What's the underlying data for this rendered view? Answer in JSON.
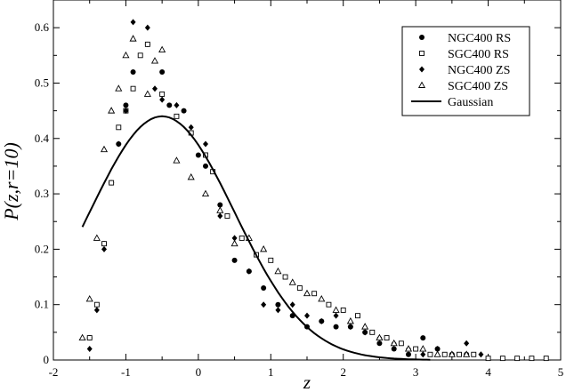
{
  "chart_data": {
    "type": "scatter",
    "xlabel": "z",
    "ylabel": "P(z,r=10)",
    "xlim": [
      -2,
      5
    ],
    "ylim": [
      0,
      0.65
    ],
    "xticks": [
      -2,
      -1,
      0,
      1,
      2,
      3,
      4,
      5
    ],
    "xtick_labels": [
      "-2",
      "-1",
      "0",
      "1",
      "2",
      "3",
      "4",
      "5"
    ],
    "yticks": [
      0,
      0.1,
      0.2,
      0.3,
      0.4,
      0.5,
      0.6
    ],
    "ytick_labels": [
      "0",
      "0.1",
      "0.2",
      "0.3",
      "0.4",
      "0.5",
      "0.6"
    ],
    "grid": false,
    "legend_position": "top-right",
    "series": [
      {
        "name": "NGC400 RS",
        "marker": "filled-circle",
        "color": "#000000",
        "points": [
          [
            -1.5,
            0.04
          ],
          [
            -1.3,
            0.21
          ],
          [
            -1.2,
            0.32
          ],
          [
            -1.1,
            0.39
          ],
          [
            -1.0,
            0.46
          ],
          [
            -0.9,
            0.52
          ],
          [
            -0.7,
            0.57
          ],
          [
            -0.5,
            0.52
          ],
          [
            -0.4,
            0.46
          ],
          [
            -0.2,
            0.45
          ],
          [
            0.0,
            0.37
          ],
          [
            0.1,
            0.35
          ],
          [
            0.3,
            0.28
          ],
          [
            0.5,
            0.18
          ],
          [
            0.7,
            0.16
          ],
          [
            0.9,
            0.13
          ],
          [
            1.1,
            0.1
          ],
          [
            1.3,
            0.08
          ],
          [
            1.5,
            0.06
          ],
          [
            1.7,
            0.07
          ],
          [
            1.9,
            0.06
          ],
          [
            2.1,
            0.06
          ],
          [
            2.3,
            0.05
          ],
          [
            2.5,
            0.03
          ],
          [
            2.7,
            0.02
          ],
          [
            2.9,
            0.01
          ],
          [
            3.1,
            0.04
          ],
          [
            3.3,
            0.02
          ],
          [
            3.5,
            0.01
          ],
          [
            3.7,
            0.01
          ]
        ]
      },
      {
        "name": "SGC400 RS",
        "marker": "open-square",
        "color": "#000000",
        "points": [
          [
            -1.5,
            0.04
          ],
          [
            -1.4,
            0.1
          ],
          [
            -1.3,
            0.21
          ],
          [
            -1.2,
            0.32
          ],
          [
            -1.1,
            0.42
          ],
          [
            -1.0,
            0.45
          ],
          [
            -0.9,
            0.49
          ],
          [
            -0.8,
            0.55
          ],
          [
            -0.7,
            0.57
          ],
          [
            -0.5,
            0.48
          ],
          [
            -0.3,
            0.44
          ],
          [
            -0.1,
            0.41
          ],
          [
            0.1,
            0.37
          ],
          [
            0.2,
            0.34
          ],
          [
            0.4,
            0.26
          ],
          [
            0.6,
            0.22
          ],
          [
            0.8,
            0.19
          ],
          [
            1.0,
            0.18
          ],
          [
            1.2,
            0.15
          ],
          [
            1.4,
            0.13
          ],
          [
            1.6,
            0.12
          ],
          [
            1.8,
            0.1
          ],
          [
            2.0,
            0.09
          ],
          [
            2.2,
            0.08
          ],
          [
            2.4,
            0.05
          ],
          [
            2.6,
            0.04
          ],
          [
            2.8,
            0.03
          ],
          [
            3.0,
            0.02
          ],
          [
            3.2,
            0.01
          ],
          [
            3.4,
            0.01
          ],
          [
            3.6,
            0.01
          ],
          [
            3.8,
            0.01
          ],
          [
            4.0,
            0.003
          ],
          [
            4.2,
            0.003
          ],
          [
            4.4,
            0.003
          ],
          [
            4.6,
            0.003
          ],
          [
            4.8,
            0.003
          ]
        ]
      },
      {
        "name": "NGC400 ZS",
        "marker": "filled-diamond",
        "color": "#000000",
        "points": [
          [
            -1.5,
            0.02
          ],
          [
            -1.4,
            0.09
          ],
          [
            -1.3,
            0.2
          ],
          [
            -1.1,
            0.39
          ],
          [
            -1.0,
            0.45
          ],
          [
            -0.9,
            0.61
          ],
          [
            -0.7,
            0.6
          ],
          [
            -0.6,
            0.49
          ],
          [
            -0.5,
            0.47
          ],
          [
            -0.3,
            0.46
          ],
          [
            -0.1,
            0.42
          ],
          [
            0.1,
            0.39
          ],
          [
            0.3,
            0.26
          ],
          [
            0.5,
            0.22
          ],
          [
            0.7,
            0.16
          ],
          [
            0.9,
            0.1
          ],
          [
            1.1,
            0.09
          ],
          [
            1.3,
            0.1
          ],
          [
            1.5,
            0.08
          ],
          [
            1.7,
            0.07
          ],
          [
            1.9,
            0.08
          ],
          [
            2.1,
            0.06
          ],
          [
            2.3,
            0.05
          ],
          [
            2.5,
            0.04
          ],
          [
            2.7,
            0.03
          ],
          [
            2.9,
            0.02
          ],
          [
            3.1,
            0.01
          ],
          [
            3.3,
            0.02
          ],
          [
            3.5,
            0.01
          ],
          [
            3.7,
            0.03
          ],
          [
            3.9,
            0.01
          ]
        ]
      },
      {
        "name": "SGC400 ZS",
        "marker": "open-triangle",
        "color": "#000000",
        "points": [
          [
            -1.6,
            0.04
          ],
          [
            -1.5,
            0.11
          ],
          [
            -1.4,
            0.22
          ],
          [
            -1.3,
            0.38
          ],
          [
            -1.2,
            0.45
          ],
          [
            -1.1,
            0.49
          ],
          [
            -1.0,
            0.55
          ],
          [
            -0.9,
            0.58
          ],
          [
            -0.7,
            0.48
          ],
          [
            -0.6,
            0.54
          ],
          [
            -0.5,
            0.56
          ],
          [
            -0.3,
            0.36
          ],
          [
            -0.1,
            0.33
          ],
          [
            0.1,
            0.3
          ],
          [
            0.3,
            0.27
          ],
          [
            0.5,
            0.21
          ],
          [
            0.7,
            0.22
          ],
          [
            0.9,
            0.2
          ],
          [
            1.1,
            0.16
          ],
          [
            1.3,
            0.14
          ],
          [
            1.5,
            0.12
          ],
          [
            1.7,
            0.11
          ],
          [
            1.9,
            0.09
          ],
          [
            2.1,
            0.07
          ],
          [
            2.3,
            0.06
          ],
          [
            2.5,
            0.04
          ],
          [
            2.7,
            0.03
          ],
          [
            2.9,
            0.02
          ],
          [
            3.1,
            0.02
          ],
          [
            3.3,
            0.01
          ],
          [
            3.5,
            0.01
          ],
          [
            3.7,
            0.01
          ]
        ]
      },
      {
        "name": "Gaussian",
        "marker": "line",
        "color": "#000000",
        "mean": -0.5,
        "amplitude": 0.44,
        "sigma": 1.0,
        "x_range": [
          -1.6,
          3.2
        ]
      }
    ]
  }
}
